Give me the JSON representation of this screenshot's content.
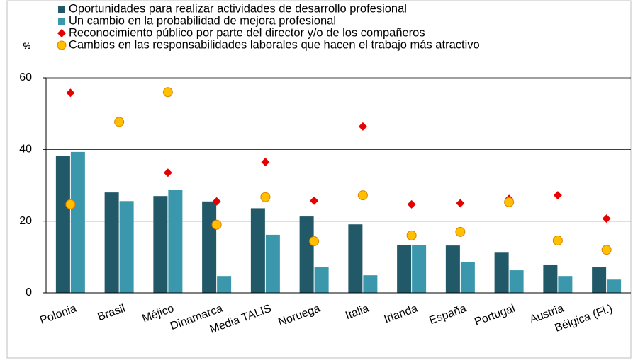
{
  "chart_data": {
    "type": "bar_marker",
    "y_label": "%",
    "categories": [
      "Polonia",
      "Brasil",
      "Méjico",
      "Dinamarca",
      "Media TALIS",
      "Noruega",
      "Italia",
      "Irlanda",
      "España",
      "Portugal",
      "Austria",
      "Bélgica (Fl.)"
    ],
    "category_colors": [
      "#000000",
      "#000000",
      "#000000",
      "#000000",
      "#2e75b6",
      "#000000",
      "#000000",
      "#000000",
      "#e60000",
      "#000000",
      "#000000",
      "#000000"
    ],
    "series": [
      {
        "name": "Oportunidades para realizar actividades de desarrollo profesional",
        "kind": "bar",
        "color": "#215968",
        "values": [
          38.2,
          28,
          27,
          25.5,
          23.6,
          21.3,
          19.1,
          13.4,
          13.2,
          11.2,
          7.9,
          7.1
        ]
      },
      {
        "name": "Un cambio en la probabilidad de mejora profesional",
        "kind": "bar",
        "color": "#3a97ac",
        "values": [
          39.3,
          25.6,
          28.8,
          4.7,
          16.2,
          7.1,
          4.9,
          13.4,
          8.5,
          6.3,
          4.7,
          3.7
        ]
      },
      {
        "name": "Reconocimiento público por parte del director y/o de los compañeros",
        "kind": "diamond",
        "color": "#e60000",
        "values": [
          55.8,
          null,
          33.5,
          25.5,
          36.5,
          25.7,
          46.4,
          24.7,
          25,
          26.2,
          27.2,
          20.7
        ]
      },
      {
        "name": "Cambios en las responsabilidades laborales que hacen el trabajo más atractivo",
        "kind": "circle",
        "color": "#ffc000",
        "values": [
          24.7,
          47.7,
          56,
          19,
          26.7,
          14.4,
          27.2,
          16,
          17,
          25.3,
          14.6,
          12
        ]
      }
    ],
    "ylim": [
      0,
      60
    ],
    "yticks": [
      0,
      20,
      40,
      60
    ],
    "grid": true
  }
}
